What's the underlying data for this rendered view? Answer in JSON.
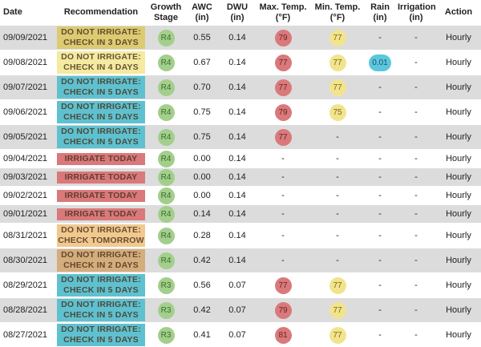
{
  "columns": [
    "Date",
    "Recommendation",
    "Growth Stage",
    "AWC (in)",
    "DWU (in)",
    "Max. Temp. (°F)",
    "Min. Temp. (°F)",
    "Rain (in)",
    "Irrigation (in)",
    "Action"
  ],
  "rows": [
    {
      "date": "09/09/2021",
      "recommendation": "DO NOT IRRIGATE: CHECK IN 3 DAYS",
      "recommendation_color": "#dccb72",
      "growth_stage": "R4",
      "awc": "0.55",
      "dwu": "0.14",
      "max_temp": "79",
      "min_temp": "77",
      "rain": "-",
      "irrigation": "-",
      "action": "Hourly"
    },
    {
      "date": "09/08/2021",
      "recommendation": "DO NOT IRRIGATE: CHECK IN 4 DAYS",
      "recommendation_color": "#f4eaa0",
      "growth_stage": "R4",
      "awc": "0.67",
      "dwu": "0.14",
      "max_temp": "77",
      "min_temp": "77",
      "rain": "0.01",
      "irrigation": "-",
      "action": "Hourly"
    },
    {
      "date": "09/07/2021",
      "recommendation": "DO NOT IRRIGATE: CHECK IN 5 DAYS",
      "recommendation_color": "#5fc1cf",
      "growth_stage": "R4",
      "awc": "0.70",
      "dwu": "0.14",
      "max_temp": "77",
      "min_temp": "77",
      "rain": "-",
      "irrigation": "-",
      "action": "Hourly"
    },
    {
      "date": "09/06/2021",
      "recommendation": "DO NOT IRRIGATE: CHECK IN 5 DAYS",
      "recommendation_color": "#5fc1cf",
      "growth_stage": "R4",
      "awc": "0.75",
      "dwu": "0.14",
      "max_temp": "79",
      "min_temp": "75",
      "rain": "-",
      "irrigation": "-",
      "action": "Hourly"
    },
    {
      "date": "09/05/2021",
      "recommendation": "DO NOT IRRIGATE: CHECK IN 5 DAYS",
      "recommendation_color": "#5fc1cf",
      "growth_stage": "R4",
      "awc": "0.75",
      "dwu": "0.14",
      "max_temp": "77",
      "min_temp": "-",
      "rain": "-",
      "irrigation": "-",
      "action": "Hourly"
    },
    {
      "date": "09/04/2021",
      "recommendation": "IRRIGATE TODAY",
      "recommendation_color": "#d9797b",
      "growth_stage": "R4",
      "awc": "0.00",
      "dwu": "0.14",
      "max_temp": "-",
      "min_temp": "-",
      "rain": "-",
      "irrigation": "-",
      "action": "Hourly"
    },
    {
      "date": "09/03/2021",
      "recommendation": "IRRIGATE TODAY",
      "recommendation_color": "#d9797b",
      "growth_stage": "R4",
      "awc": "0.00",
      "dwu": "0.14",
      "max_temp": "-",
      "min_temp": "-",
      "rain": "-",
      "irrigation": "-",
      "action": "Hourly"
    },
    {
      "date": "09/02/2021",
      "recommendation": "IRRIGATE TODAY",
      "recommendation_color": "#d9797b",
      "growth_stage": "R4",
      "awc": "0.00",
      "dwu": "0.14",
      "max_temp": "-",
      "min_temp": "-",
      "rain": "-",
      "irrigation": "-",
      "action": "Hourly"
    },
    {
      "date": "09/01/2021",
      "recommendation": "IRRIGATE TODAY",
      "recommendation_color": "#d9797b",
      "growth_stage": "R4",
      "awc": "0.14",
      "dwu": "0.14",
      "max_temp": "-",
      "min_temp": "-",
      "rain": "-",
      "irrigation": "-",
      "action": "Hourly"
    },
    {
      "date": "08/31/2021",
      "recommendation": "DO NOT IRRIGATE: CHECK TOMORROW",
      "recommendation_color": "#f1c98f",
      "growth_stage": "R4",
      "awc": "0.28",
      "dwu": "0.14",
      "max_temp": "-",
      "min_temp": "-",
      "rain": "-",
      "irrigation": "-",
      "action": "Hourly"
    },
    {
      "date": "08/30/2021",
      "recommendation": "DO NOT IRRIGATE: CHECK IN 2 DAYS",
      "recommendation_color": "#d4ad7c",
      "growth_stage": "R4",
      "awc": "0.42",
      "dwu": "0.14",
      "max_temp": "-",
      "min_temp": "-",
      "rain": "-",
      "irrigation": "-",
      "action": "Hourly"
    },
    {
      "date": "08/29/2021",
      "recommendation": "DO NOT IRRIGATE: CHECK IN 5 DAYS",
      "recommendation_color": "#5fc1cf",
      "growth_stage": "R3",
      "awc": "0.56",
      "dwu": "0.07",
      "max_temp": "77",
      "min_temp": "77",
      "rain": "-",
      "irrigation": "-",
      "action": "Hourly"
    },
    {
      "date": "08/28/2021",
      "recommendation": "DO NOT IRRIGATE: CHECK IN 5 DAYS",
      "recommendation_color": "#5fc1cf",
      "growth_stage": "R3",
      "awc": "0.42",
      "dwu": "0.07",
      "max_temp": "79",
      "min_temp": "77",
      "rain": "-",
      "irrigation": "-",
      "action": "Hourly"
    },
    {
      "date": "08/27/2021",
      "recommendation": "DO NOT IRRIGATE: CHECK IN 5 DAYS",
      "recommendation_color": "#5fc1cf",
      "growth_stage": "R3",
      "awc": "0.41",
      "dwu": "0.07",
      "max_temp": "81",
      "min_temp": "77",
      "rain": "-",
      "irrigation": "-",
      "action": "Hourly"
    }
  ]
}
